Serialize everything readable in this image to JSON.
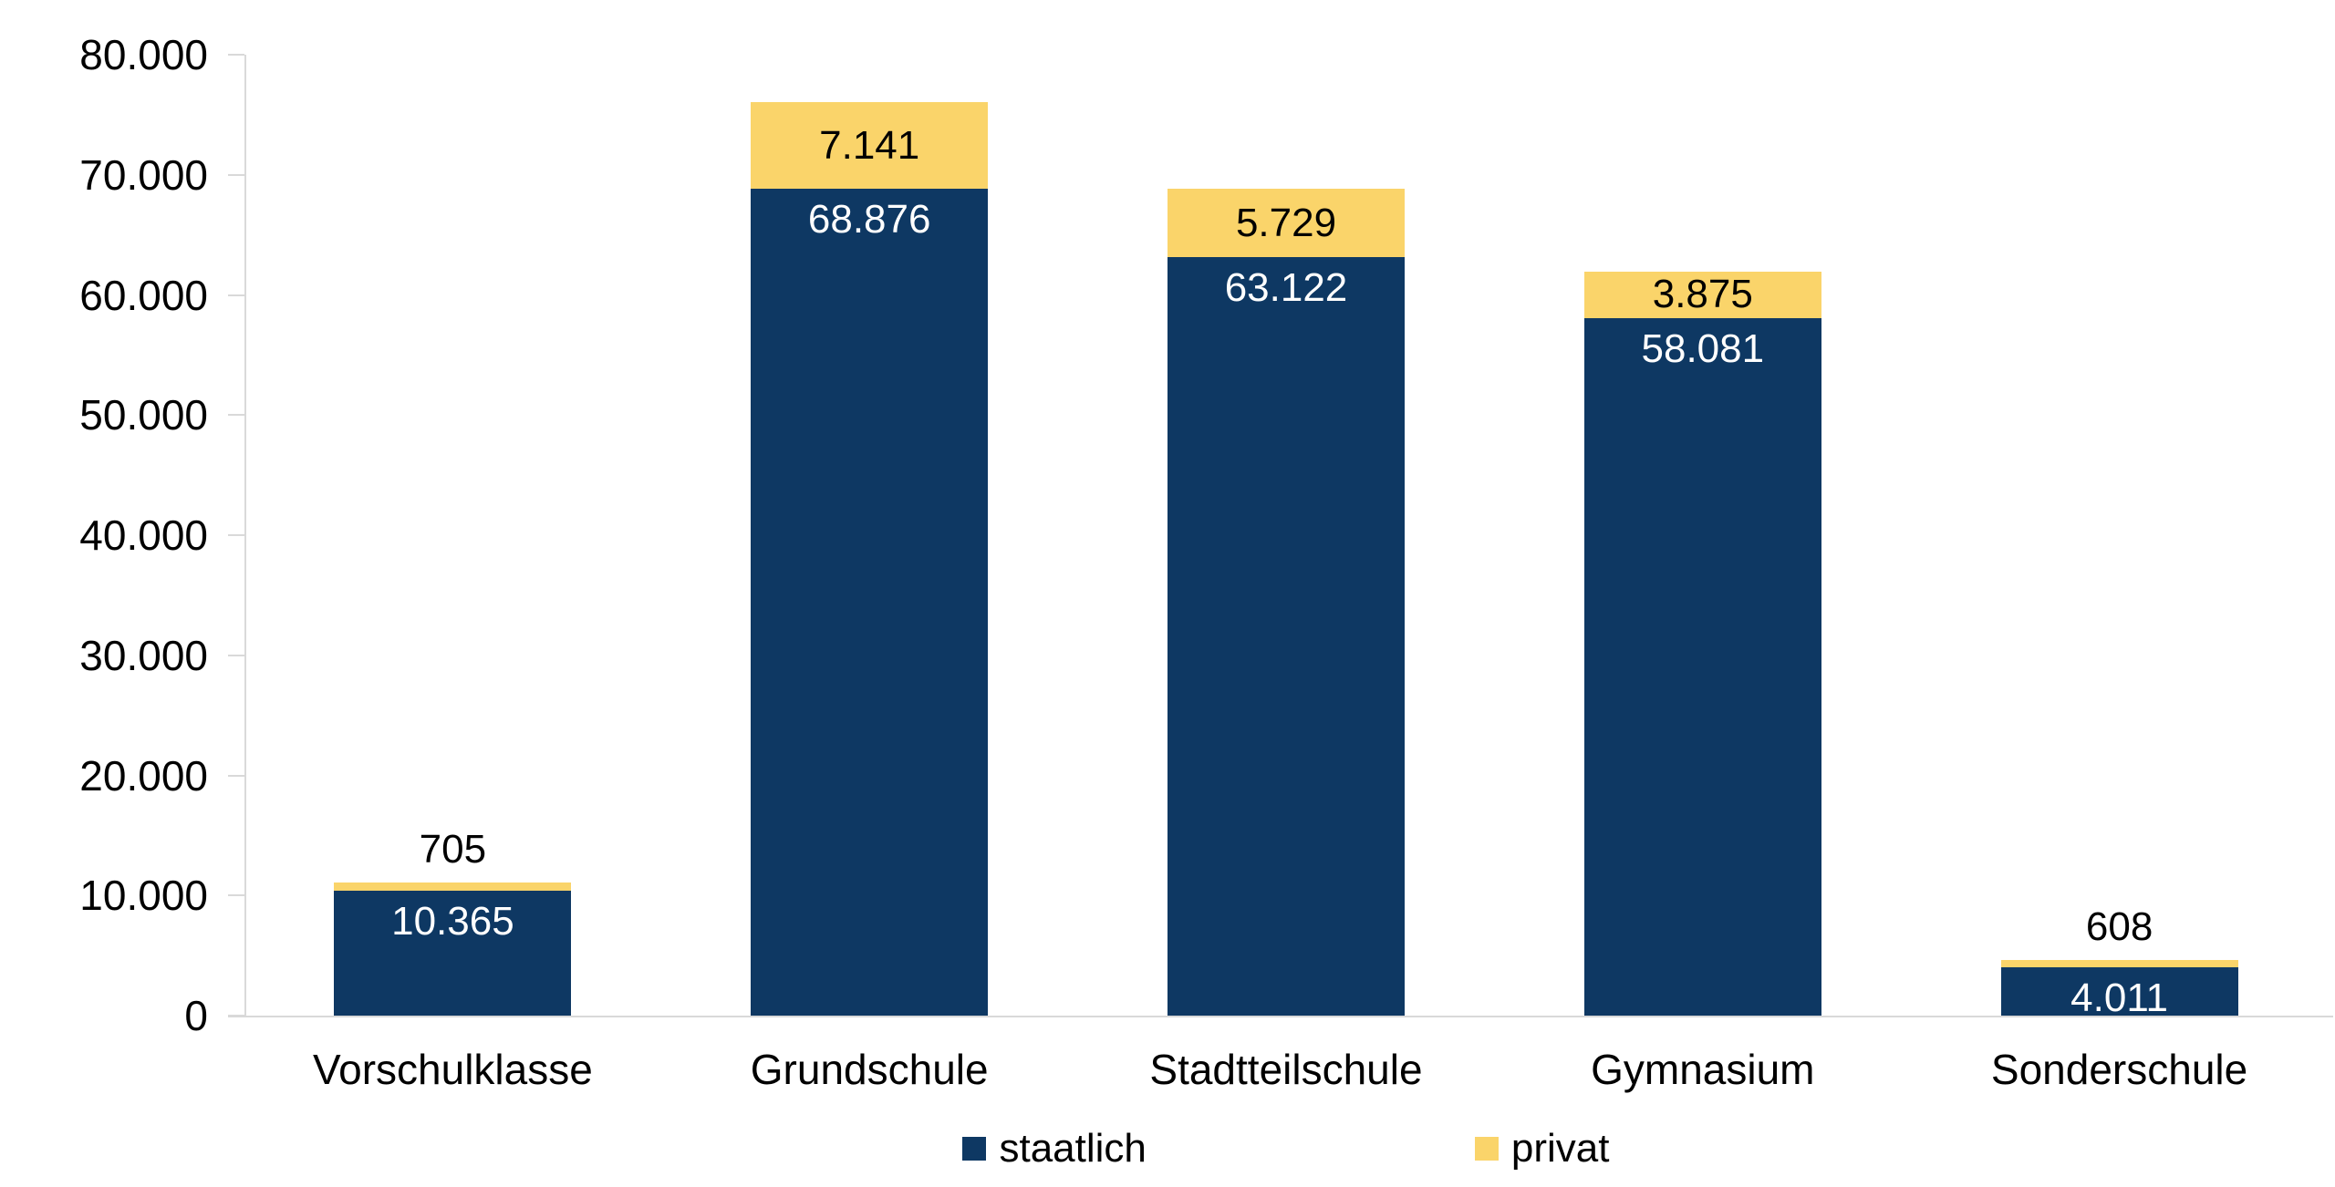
{
  "chart_data": {
    "type": "bar",
    "stacked": true,
    "title": "",
    "categories": [
      "Vorschulklasse",
      "Grundschule",
      "Stadtteilschule",
      "Gymnasium",
      "Sonderschule"
    ],
    "series": [
      {
        "name": "staatlich",
        "color": "#0E3863",
        "label_color": "#FFFFFF",
        "values": [
          10365,
          68876,
          63122,
          58081,
          4011
        ],
        "labels": [
          "10.365",
          "68.876",
          "63.122",
          "58.081",
          "4.011"
        ]
      },
      {
        "name": "privat",
        "color": "#FAD46A",
        "label_color": "#000000",
        "values": [
          705,
          7141,
          5729,
          3875,
          608
        ],
        "labels": [
          "705",
          "7.141",
          "5.729",
          "3.875",
          "608"
        ]
      }
    ],
    "totals": [
      11070,
      76017,
      68851,
      61956,
      4619
    ],
    "ylim": [
      0,
      80000
    ],
    "ytick_step": 10000,
    "ytick_labels": [
      "0",
      "10.000",
      "20.000",
      "30.000",
      "40.000",
      "50.000",
      "60.000",
      "70.000",
      "80.000"
    ],
    "legend": {
      "position": "bottom",
      "entries": [
        "staatlich",
        "privat"
      ]
    },
    "colors": {
      "axis": "#D9D9D9",
      "background": "#FFFFFF",
      "text": "#000000"
    },
    "grid": false
  }
}
